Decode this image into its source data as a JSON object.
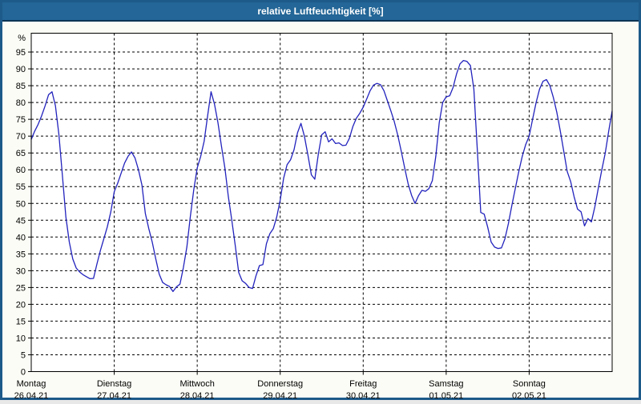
{
  "window": {
    "title": "relative Luftfeuchtigkeit [%]"
  },
  "colors": {
    "frame_border": "#1d5a8a",
    "titlebar_bg": "#236697",
    "titlebar_text": "#ffffff",
    "titlebar_divider": "#0a3354",
    "canvas_bg": "#fcfcf6",
    "plot_bg": "#ffffff",
    "grid": "#000000",
    "line": "#2222bd",
    "axis_text": "#000000"
  },
  "chart_data": {
    "type": "line",
    "title": "relative Luftfeuchtigkeit [%]",
    "unit_label": "%",
    "ylabel": "relative Luftfeuchtigkeit",
    "ylim": [
      0,
      100.6
    ],
    "y_ticks": [
      0,
      5,
      10,
      15,
      20,
      25,
      30,
      35,
      40,
      45,
      50,
      55,
      60,
      65,
      70,
      75,
      80,
      85,
      90,
      95
    ],
    "grid": "dashed",
    "legend": "none",
    "hours_per_day": 24,
    "x_days": [
      {
        "name": "Montag",
        "date": "26.04.21"
      },
      {
        "name": "Dienstag",
        "date": "27.04.21"
      },
      {
        "name": "Mittwoch",
        "date": "28.04.21"
      },
      {
        "name": "Donnerstag",
        "date": "29.04.21"
      },
      {
        "name": "Freitag",
        "date": "30.04.21"
      },
      {
        "name": "Samstag",
        "date": "01.05.21"
      },
      {
        "name": "Sonntag",
        "date": "02.05.21"
      }
    ],
    "series": [
      {
        "name": "relative Luftfeuchtigkeit [%]",
        "values_hourly": [
          69,
          71.5,
          73.5,
          76,
          79,
          82.3,
          83.2,
          79,
          70.5,
          58.5,
          46,
          38.5,
          33.5,
          30.8,
          29.6,
          28.8,
          28.2,
          27.6,
          27.7,
          32,
          36,
          39.5,
          43,
          47.5,
          53.5,
          56,
          59,
          62,
          64,
          65.3,
          63.5,
          60,
          55.5,
          47,
          42.5,
          38.5,
          33.5,
          29,
          26.5,
          25.8,
          25.3,
          23.8,
          25.2,
          26,
          31,
          37,
          46,
          54,
          60.5,
          64,
          68.5,
          76,
          83.2,
          79.5,
          74,
          67,
          60.5,
          52,
          45,
          37.5,
          29.5,
          27,
          26.2,
          25,
          24.7,
          28.5,
          31.5,
          31.8,
          38,
          41,
          42.5,
          46,
          51,
          57.5,
          61.5,
          63,
          66,
          71,
          73.8,
          70,
          64.5,
          58.5,
          57.2,
          64.5,
          70.4,
          71.3,
          68.3,
          69.2,
          67.8,
          68,
          67.2,
          67.3,
          69.3,
          72.8,
          75.3,
          76.8,
          78.6,
          81,
          83.5,
          85.2,
          85.7,
          85.3,
          83.5,
          80.5,
          77.5,
          74.3,
          70.3,
          65.5,
          60.5,
          55.8,
          52.4,
          50,
          52.3,
          53.9,
          53.6,
          54.4,
          56.8,
          64,
          74,
          80,
          81.7,
          82,
          84.5,
          88.5,
          91.5,
          92.5,
          92.2,
          91,
          84,
          66,
          47.3,
          46.8,
          43,
          38.5,
          37,
          36.6,
          36.8,
          39.5,
          44,
          49.5,
          54.5,
          59.5,
          64,
          67.5,
          70,
          75,
          80,
          84,
          86.3,
          86.8,
          85,
          81.5,
          77,
          71.5,
          65.5,
          59.5,
          56.5,
          52,
          48.3,
          47.5,
          43.3,
          45.5,
          44.5,
          49,
          54.5,
          60,
          65,
          71.5,
          77.5
        ]
      }
    ]
  }
}
